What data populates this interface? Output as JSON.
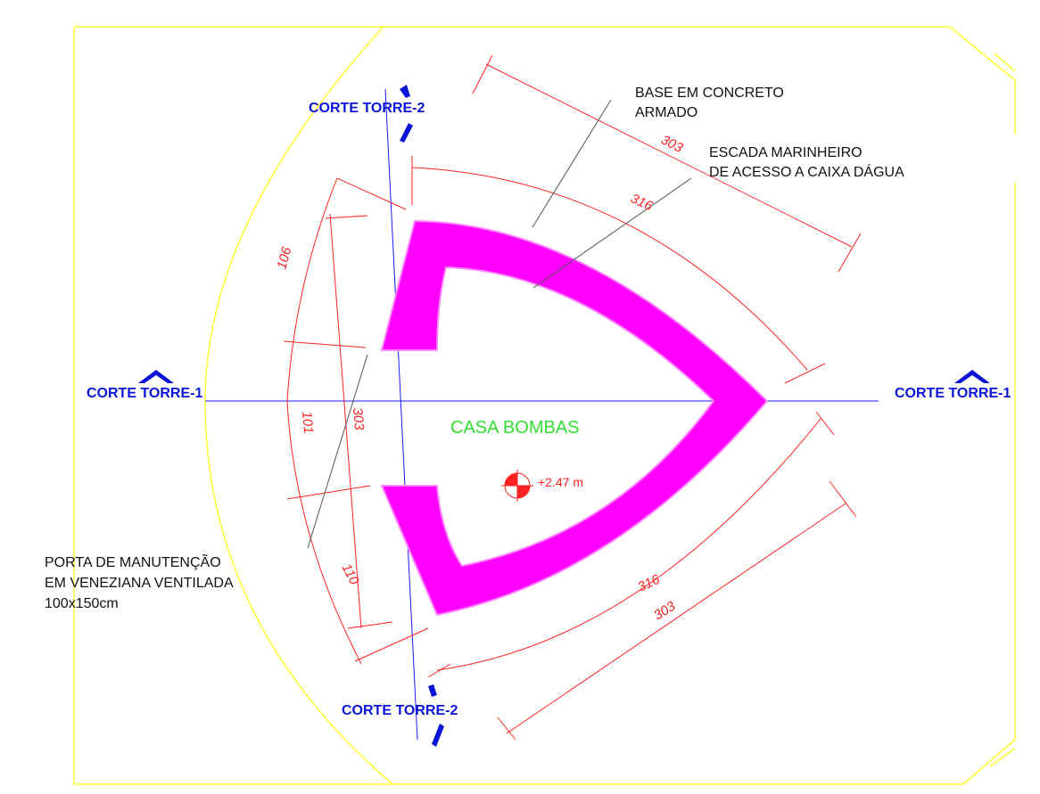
{
  "labels": {
    "base": [
      "BASE EM CONCRETO",
      "ARMADO"
    ],
    "escada": [
      "ESCADA MARINHEIRO",
      "DE ACESSO A CAIXA DÁGUA"
    ],
    "room": "CASA BOMBAS",
    "level": "+2.47 m",
    "porta": [
      "PORTA DE MANUTENÇÃO",
      "EM VENEZIANA VENTILADA",
      "100x150cm"
    ]
  },
  "section_marks": {
    "top": "CORTE TORRE-2",
    "left": "CORTE TORRE-1",
    "right": "CORTE TORRE-1",
    "bottom": "CORTE TORRE-2"
  },
  "dimensions": {
    "top_outer": "303",
    "top_inner": "316",
    "left_top": "106",
    "left_mid": "101",
    "left_chord": "303",
    "left_bottom": "110",
    "bottom_inner": "316",
    "bottom_outer": "303"
  }
}
